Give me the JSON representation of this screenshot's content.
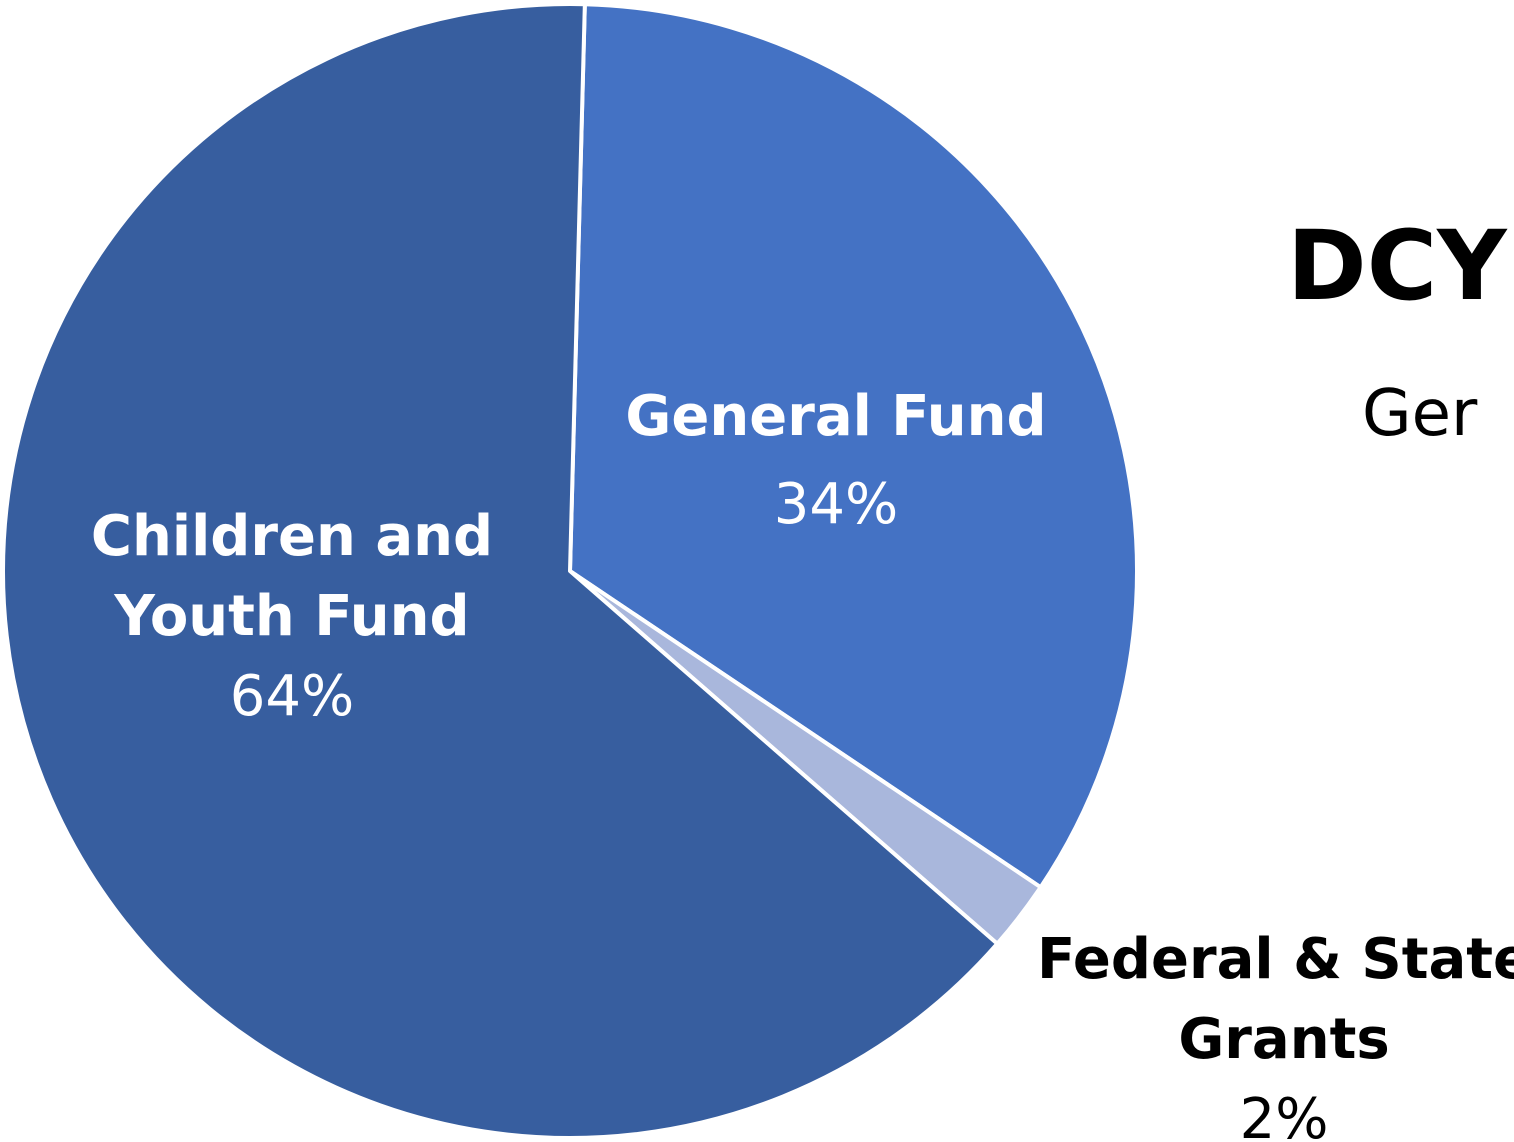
{
  "title": "DCY",
  "subtitle": "Ger",
  "colors": {
    "children_youth_fund": "#375E9F",
    "general_fund": "#4472C4",
    "federal_state_grants": "#A9B7DC",
    "slice_border": "#FFFFFF",
    "inside_label": "#FFFFFF",
    "outside_label": "#000000"
  },
  "chart_data": {
    "type": "pie",
    "title": "",
    "slices": [
      {
        "name_lines": [
          "General Fund"
        ],
        "value": 34,
        "percent_label": "34%",
        "color": "#4472C4",
        "label_position": "inside"
      },
      {
        "name_lines": [
          "Federal & State",
          "Grants"
        ],
        "value": 2,
        "percent_label": "2%",
        "color": "#A9B7DC",
        "label_position": "outside"
      },
      {
        "name_lines": [
          "Children and",
          "Youth Fund"
        ],
        "value": 64,
        "percent_label": "64%",
        "color": "#375E9F",
        "label_position": "inside"
      }
    ]
  }
}
